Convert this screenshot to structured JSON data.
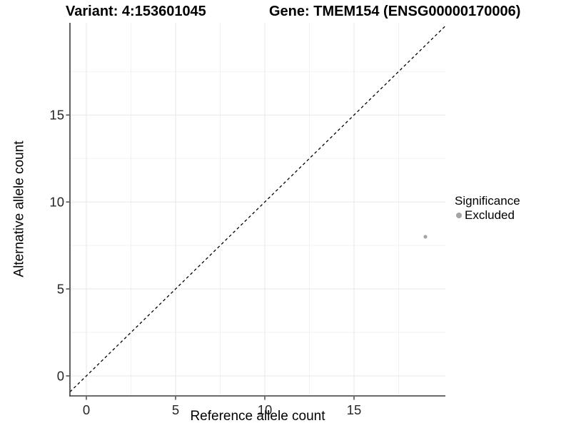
{
  "titles": {
    "variant": "Variant: 4:153601045",
    "gene": "Gene: TMEM154 (ENSG00000170006)"
  },
  "chart_data": {
    "type": "scatter",
    "xlabel": "Reference allele count",
    "ylabel": "Alternative allele count",
    "xlim": [
      -0.92,
      20.12
    ],
    "ylim": [
      -1.15,
      20.3
    ],
    "x_ticks": [
      0,
      5,
      10,
      15
    ],
    "y_ticks": [
      0,
      5,
      10,
      15
    ],
    "x_minor": [
      2.5,
      7.5,
      12.5,
      17.5
    ],
    "y_minor": [
      2.5,
      7.5,
      12.5,
      17.5
    ],
    "grid": "major+minor",
    "legend_position": "right",
    "reference_line": {
      "type": "identity",
      "slope": 1,
      "intercept": 0,
      "style": "dashed",
      "color": "#000000"
    },
    "series": [
      {
        "name": "Excluded",
        "color": "#a4a4a4",
        "points": [
          {
            "x": 19,
            "y": 8
          }
        ]
      }
    ],
    "legend": {
      "title": "Significance",
      "entries": [
        {
          "label": "Excluded",
          "color": "#a4a4a4"
        }
      ]
    },
    "colors": {
      "background": "#ffffff",
      "grid_major": "#e7e7e7",
      "grid_minor": "#f2f2f2",
      "axis_line": "#3a3a3a",
      "tick_text": "#262626",
      "point": "#a4a4a4",
      "dashed_line": "#000000"
    }
  }
}
